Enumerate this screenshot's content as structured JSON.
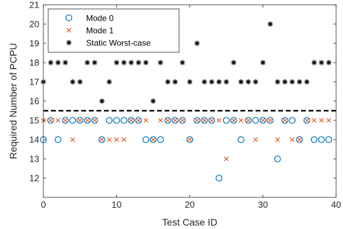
{
  "chart_data": {
    "type": "scatter",
    "xlabel": "Test Case ID",
    "ylabel": "Required Number of PCPU",
    "xlim": [
      0,
      40
    ],
    "ylim": [
      11,
      21
    ],
    "xticks": [
      0,
      10,
      20,
      30,
      40
    ],
    "yticks": [
      12,
      13,
      14,
      15,
      16,
      17,
      18,
      19,
      20,
      21
    ],
    "grid": false,
    "legend_position": "top-left",
    "reference_line": {
      "y": 15.5,
      "style": "dashed",
      "color": "#000000"
    },
    "series": [
      {
        "name": "Mode 0",
        "marker": "circle",
        "color": "#0072BD",
        "x": [
          0,
          1,
          2,
          3,
          4,
          5,
          6,
          7,
          8,
          9,
          10,
          11,
          12,
          13,
          14,
          15,
          16,
          17,
          18,
          19,
          20,
          21,
          22,
          23,
          24,
          25,
          26,
          27,
          28,
          29,
          30,
          31,
          32,
          33,
          34,
          35,
          36,
          37,
          38,
          39
        ],
        "y": [
          14,
          15,
          14,
          15,
          15,
          15,
          15,
          15,
          14,
          15,
          15,
          15,
          15,
          15,
          14,
          14,
          14,
          15,
          15,
          15,
          14,
          15,
          15,
          15,
          12,
          15,
          15,
          14,
          15,
          15,
          15,
          15,
          13,
          15,
          15,
          14,
          15,
          14,
          14,
          14
        ]
      },
      {
        "name": "Mode 1",
        "marker": "x",
        "color": "#D95319",
        "x": [
          0,
          1,
          2,
          3,
          4,
          5,
          6,
          7,
          8,
          9,
          10,
          11,
          12,
          13,
          14,
          15,
          16,
          17,
          18,
          19,
          20,
          21,
          22,
          23,
          24,
          25,
          26,
          27,
          28,
          29,
          30,
          31,
          32,
          33,
          34,
          35,
          36,
          37,
          38,
          39
        ],
        "y": [
          15,
          15,
          15,
          15,
          14,
          15,
          15,
          15,
          14,
          14,
          14,
          14,
          15,
          15,
          15,
          14,
          15,
          15,
          15,
          15,
          14,
          15,
          15,
          15,
          15,
          13,
          15,
          15,
          15,
          14,
          15,
          15,
          14,
          15,
          14,
          14,
          15,
          15,
          15,
          15
        ]
      },
      {
        "name": "Static Worst-case",
        "marker": "asterisk",
        "color": "#000000",
        "x": [
          0,
          1,
          2,
          3,
          4,
          5,
          6,
          7,
          8,
          9,
          10,
          11,
          12,
          13,
          14,
          15,
          16,
          17,
          18,
          19,
          20,
          21,
          22,
          23,
          24,
          25,
          26,
          27,
          28,
          29,
          30,
          31,
          32,
          33,
          34,
          35,
          36,
          37,
          38,
          39
        ],
        "y": [
          17,
          18,
          18,
          18,
          17,
          17,
          18,
          18,
          16,
          17,
          18,
          18,
          18,
          18,
          18,
          16,
          18,
          17,
          17,
          18,
          17,
          19,
          17,
          17,
          17,
          17,
          18,
          17,
          17,
          17,
          18,
          20,
          17,
          17,
          17,
          17,
          17,
          18,
          18,
          18
        ]
      }
    ]
  }
}
